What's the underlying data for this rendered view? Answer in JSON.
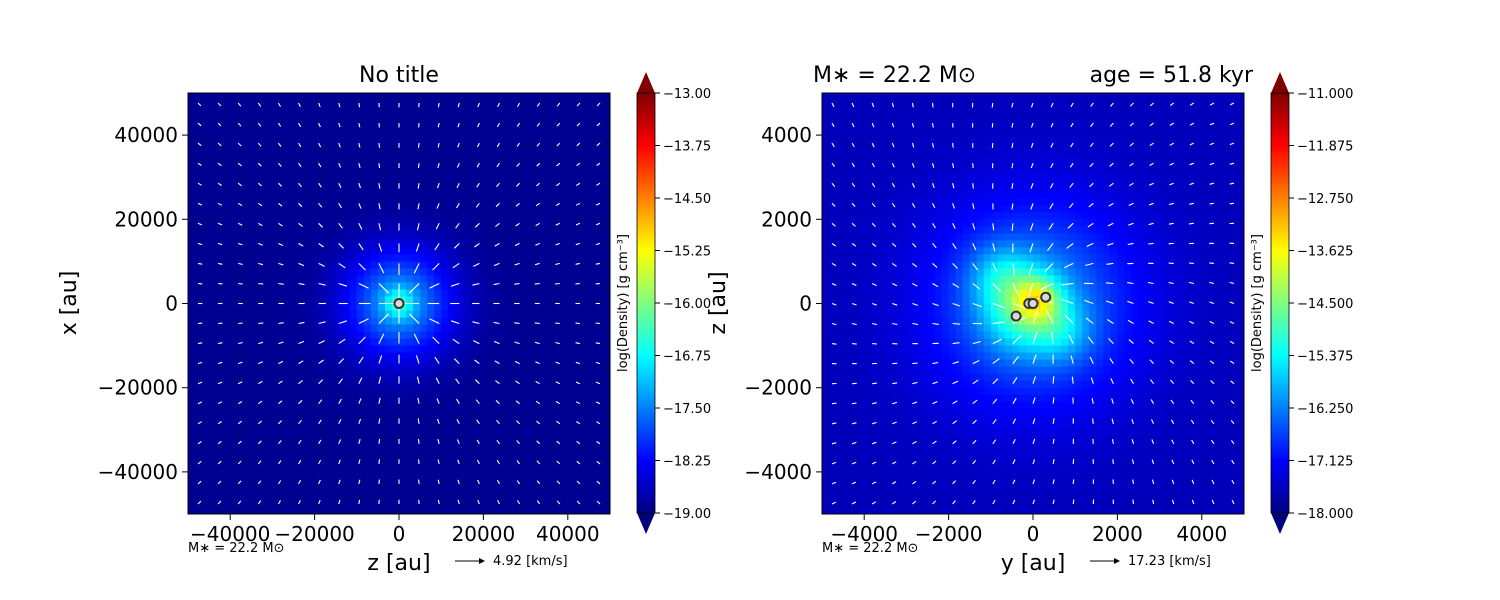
{
  "chart_data": [
    {
      "type": "heatmap",
      "title": "No title",
      "xlabel": "z [au]",
      "ylabel": "x [au]",
      "xlim": [
        -50000,
        50000
      ],
      "ylim": [
        -50000,
        50000
      ],
      "xticks": [
        -40000,
        -20000,
        0,
        20000,
        40000
      ],
      "yticks": [
        40000,
        20000,
        0,
        -20000,
        -40000
      ],
      "xtick_labels": [
        "−40000",
        "−20000",
        "0",
        "20000",
        "40000"
      ],
      "ytick_labels": [
        "40000",
        "20000",
        "0",
        "−20000",
        "−40000"
      ],
      "colorbar": {
        "label": "log(Density) [g cm⁻³]",
        "min": -19.0,
        "max": -13.0,
        "ticks": [
          -13.0,
          -13.75,
          -14.5,
          -15.25,
          -16.0,
          -16.75,
          -17.5,
          -18.25,
          -19.0
        ],
        "tick_labels": [
          "−13.00",
          "−13.75",
          "−14.50",
          "−15.25",
          "−16.00",
          "−16.75",
          "−17.50",
          "−18.25",
          "−19.00"
        ]
      },
      "background_value": -18.9,
      "blobs": [
        {
          "x": 0,
          "y": 0,
          "sigma": 9000,
          "amp": 1.6
        },
        {
          "x": 0,
          "y": 0,
          "sigma": 2500,
          "amp": 0.9
        }
      ],
      "sinks": [
        {
          "x": 0,
          "y": 0
        }
      ],
      "velocity_field": "radial infall toward center",
      "mass_label": "M∗ = 22.2 M⊙",
      "velocity_scale_label": "4.92 [km/s]"
    },
    {
      "type": "heatmap",
      "title_left": "M∗ = 22.2 M⊙",
      "title_right": "age = 51.8 kyr",
      "xlabel": "y [au]",
      "ylabel": "z [au]",
      "xlim": [
        -5000,
        5000
      ],
      "ylim": [
        -5000,
        5000
      ],
      "xticks": [
        -4000,
        -2000,
        0,
        2000,
        4000
      ],
      "yticks": [
        4000,
        2000,
        0,
        -2000,
        -4000
      ],
      "xtick_labels": [
        "−4000",
        "−2000",
        "0",
        "2000",
        "4000"
      ],
      "ytick_labels": [
        "4000",
        "2000",
        "0",
        "−2000",
        "−4000"
      ],
      "colorbar": {
        "label": "log(Density) [g cm⁻³]",
        "min": -18.0,
        "max": -11.0,
        "ticks": [
          -11.0,
          -11.875,
          -12.75,
          -13.625,
          -14.5,
          -15.375,
          -16.25,
          -17.125,
          -18.0
        ],
        "tick_labels": [
          "−11.000",
          "−11.875",
          "−12.750",
          "−13.625",
          "−14.500",
          "−15.375",
          "−16.250",
          "−17.125",
          "−18.000"
        ]
      },
      "background_value": -17.6,
      "blobs": [
        {
          "x": 0,
          "y": 0,
          "sigma": 1700,
          "amp": 1.4
        },
        {
          "x": -200,
          "y": -100,
          "sigma": 700,
          "amp": 1.6
        },
        {
          "x": 100,
          "y": 100,
          "sigma": 350,
          "amp": 1.4
        },
        {
          "x": -800,
          "y": 700,
          "sigma": 500,
          "amp": 0.7
        },
        {
          "x": 700,
          "y": -700,
          "sigma": 500,
          "amp": 0.7
        }
      ],
      "sinks": [
        {
          "x": -400,
          "y": -300
        },
        {
          "x": -100,
          "y": 0
        },
        {
          "x": 0,
          "y": 0
        },
        {
          "x": 300,
          "y": 150
        }
      ],
      "velocity_field": "inflow with rotation around center",
      "mass_label": "M∗ = 22.2 M⊙",
      "velocity_scale_label": "17.23 [km/s]"
    }
  ]
}
